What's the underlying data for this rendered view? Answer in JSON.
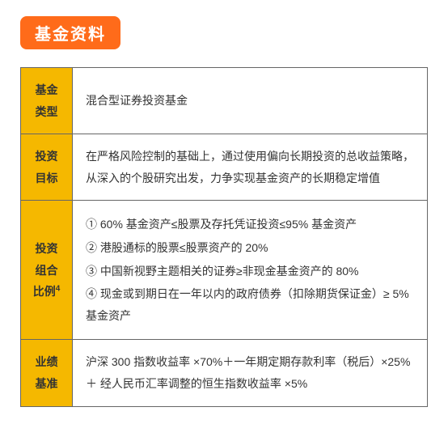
{
  "title": "基金资料",
  "colors": {
    "badge_bg": "#ff6b1a",
    "badge_text": "#ffffff",
    "label_bg": "#f5b800",
    "label_text": "#000000",
    "border": "#666666",
    "content_text": "#333333",
    "content_bg": "#ffffff"
  },
  "rows": [
    {
      "label": "基金类型",
      "content": "混合型证券投资基金"
    },
    {
      "label": "投资目标",
      "content": "在严格风险控制的基础上，通过使用偏向长期投资的总收益策略，从深入的个股研究出发，力争实现基金资产的长期稳定增值"
    },
    {
      "label": "投资组合比例",
      "label_sup": "4",
      "content_list": [
        "① 60% 基金资产≤股票及存托凭证投资≤95% 基金资产",
        "② 港股通标的股票≤股票资产的 20%",
        "③ 中国新视野主题相关的证券≥非现金基金资产的 80%",
        "④ 现金或到期日在一年以内的政府债券（扣除期货保证金）≥ 5% 基金资产"
      ]
    },
    {
      "label": "业绩基准",
      "content": "沪深 300 指数收益率 ×70%＋一年期定期存款利率（税后）×25%＋ 经人民币汇率调整的恒生指数收益率 ×5%"
    }
  ]
}
